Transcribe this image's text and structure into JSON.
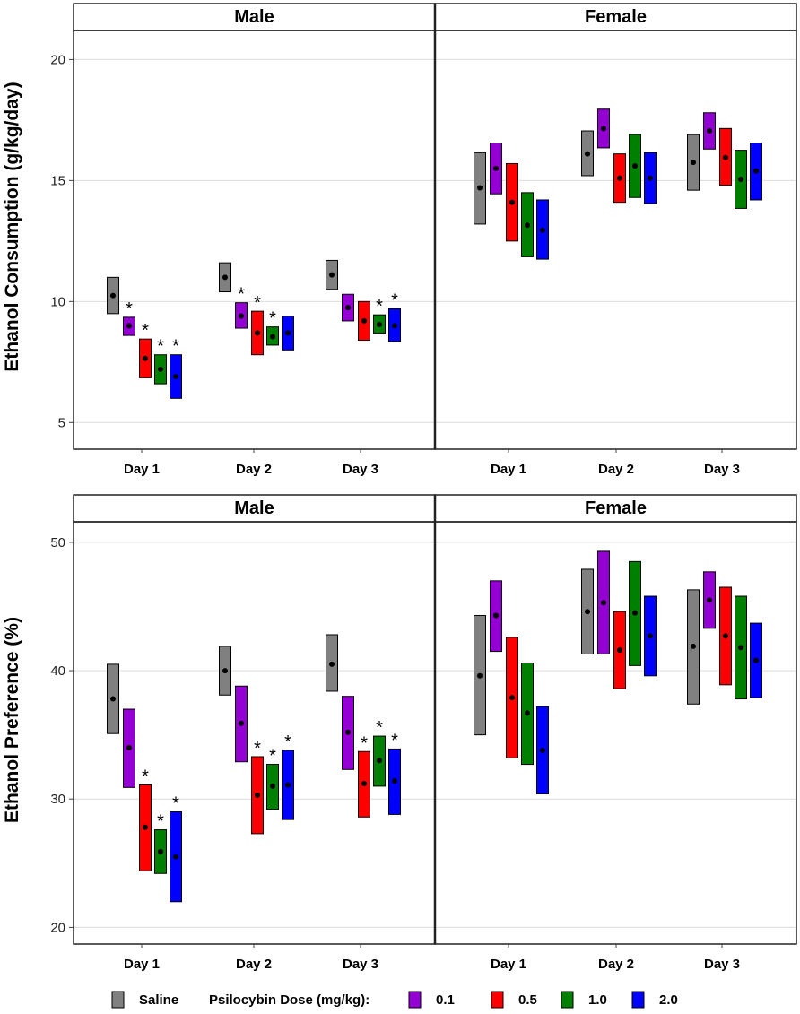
{
  "chart_data": [
    {
      "type": "crossbar",
      "ylabel": "Ethanol Consumption (g/kg/day)",
      "ylim": [
        3.9,
        21.2
      ],
      "yticks": [
        5,
        10,
        15,
        20
      ],
      "grid": true,
      "days": [
        "Day 1",
        "Day 2",
        "Day 3"
      ],
      "panels": [
        {
          "name": "Male",
          "series": [
            {
              "key": "saline",
              "mean": [
                10.25,
                11.0,
                11.1
              ],
              "low": [
                9.5,
                10.4,
                10.5
              ],
              "high": [
                11.0,
                11.6,
                11.7
              ],
              "sig": [
                false,
                false,
                false
              ]
            },
            {
              "key": "d01",
              "mean": [
                9.0,
                9.4,
                9.75
              ],
              "low": [
                8.6,
                8.9,
                9.2
              ],
              "high": [
                9.35,
                9.95,
                10.3
              ],
              "sig": [
                true,
                true,
                false
              ]
            },
            {
              "key": "d05",
              "mean": [
                7.65,
                8.7,
                9.2
              ],
              "low": [
                6.85,
                7.8,
                8.4
              ],
              "high": [
                8.45,
                9.6,
                10.0
              ],
              "sig": [
                true,
                true,
                false
              ]
            },
            {
              "key": "d10",
              "mean": [
                7.2,
                8.55,
                9.05
              ],
              "low": [
                6.6,
                8.2,
                8.7
              ],
              "high": [
                7.8,
                8.95,
                9.45
              ],
              "sig": [
                true,
                true,
                true
              ]
            },
            {
              "key": "d20",
              "mean": [
                6.9,
                8.7,
                9.0
              ],
              "low": [
                6.0,
                8.0,
                8.35
              ],
              "high": [
                7.8,
                9.4,
                9.7
              ],
              "sig": [
                true,
                false,
                true
              ]
            }
          ]
        },
        {
          "name": "Female",
          "series": [
            {
              "key": "saline",
              "mean": [
                14.7,
                16.1,
                15.75
              ],
              "low": [
                13.2,
                15.2,
                14.6
              ],
              "high": [
                16.15,
                17.05,
                16.9
              ],
              "sig": [
                false,
                false,
                false
              ]
            },
            {
              "key": "d01",
              "mean": [
                15.5,
                17.15,
                17.05
              ],
              "low": [
                14.45,
                16.35,
                16.3
              ],
              "high": [
                16.55,
                17.95,
                17.8
              ],
              "sig": [
                false,
                false,
                false
              ]
            },
            {
              "key": "d05",
              "mean": [
                14.1,
                15.1,
                15.95
              ],
              "low": [
                12.5,
                14.1,
                14.8
              ],
              "high": [
                15.7,
                16.1,
                17.15
              ],
              "sig": [
                false,
                false,
                false
              ]
            },
            {
              "key": "d10",
              "mean": [
                13.15,
                15.6,
                15.05
              ],
              "low": [
                11.85,
                14.3,
                13.85
              ],
              "high": [
                14.5,
                16.9,
                16.25
              ],
              "sig": [
                false,
                false,
                false
              ]
            },
            {
              "key": "d20",
              "mean": [
                12.95,
                15.1,
                15.4
              ],
              "low": [
                11.75,
                14.05,
                14.2
              ],
              "high": [
                14.2,
                16.15,
                16.55
              ],
              "sig": [
                false,
                false,
                false
              ]
            }
          ]
        }
      ]
    },
    {
      "type": "crossbar",
      "ylabel": "Ethanol Preference (%)",
      "ylim": [
        18.7,
        51.6
      ],
      "yticks": [
        20,
        30,
        40,
        50
      ],
      "grid": true,
      "days": [
        "Day 1",
        "Day 2",
        "Day 3"
      ],
      "panels": [
        {
          "name": "Male",
          "series": [
            {
              "key": "saline",
              "mean": [
                37.8,
                40.0,
                40.5
              ],
              "low": [
                35.1,
                38.1,
                38.4
              ],
              "high": [
                40.5,
                41.9,
                42.8
              ],
              "sig": [
                false,
                false,
                false
              ]
            },
            {
              "key": "d01",
              "mean": [
                34.0,
                35.9,
                35.2
              ],
              "low": [
                30.9,
                32.9,
                32.3
              ],
              "high": [
                37.0,
                38.8,
                38.0
              ],
              "sig": [
                false,
                false,
                false
              ]
            },
            {
              "key": "d05",
              "mean": [
                27.8,
                30.3,
                31.2
              ],
              "low": [
                24.4,
                27.3,
                28.6
              ],
              "high": [
                31.1,
                33.3,
                33.7
              ],
              "sig": [
                true,
                true,
                true
              ]
            },
            {
              "key": "d10",
              "mean": [
                25.9,
                31.0,
                33.0
              ],
              "low": [
                24.2,
                29.2,
                31.0
              ],
              "high": [
                27.6,
                32.7,
                34.9
              ],
              "sig": [
                true,
                true,
                true
              ]
            },
            {
              "key": "d20",
              "mean": [
                25.5,
                31.1,
                31.4
              ],
              "low": [
                22.0,
                28.4,
                28.8
              ],
              "high": [
                29.0,
                33.8,
                33.9
              ],
              "sig": [
                true,
                true,
                true
              ]
            }
          ]
        },
        {
          "name": "Female",
          "series": [
            {
              "key": "saline",
              "mean": [
                39.6,
                44.6,
                41.9
              ],
              "low": [
                35.0,
                41.3,
                37.4
              ],
              "high": [
                44.3,
                47.9,
                46.3
              ],
              "sig": [
                false,
                false,
                false
              ]
            },
            {
              "key": "d01",
              "mean": [
                44.3,
                45.3,
                45.5
              ],
              "low": [
                41.5,
                41.3,
                43.3
              ],
              "high": [
                47.0,
                49.3,
                47.7
              ],
              "sig": [
                false,
                false,
                false
              ]
            },
            {
              "key": "d05",
              "mean": [
                37.9,
                41.6,
                42.7
              ],
              "low": [
                33.2,
                38.6,
                38.9
              ],
              "high": [
                42.6,
                44.6,
                46.5
              ],
              "sig": [
                false,
                false,
                false
              ]
            },
            {
              "key": "d10",
              "mean": [
                36.7,
                44.5,
                41.8
              ],
              "low": [
                32.7,
                40.4,
                37.8
              ],
              "high": [
                40.6,
                48.5,
                45.8
              ],
              "sig": [
                false,
                false,
                false
              ]
            },
            {
              "key": "d20",
              "mean": [
                33.8,
                42.7,
                40.8
              ],
              "low": [
                30.4,
                39.6,
                37.9
              ],
              "high": [
                37.2,
                45.8,
                43.7
              ],
              "sig": [
                false,
                false,
                false
              ]
            }
          ]
        }
      ]
    }
  ],
  "legend": {
    "items": [
      {
        "key": "saline",
        "label": "Saline",
        "color": "#808080"
      },
      {
        "key": "d01",
        "label": "0.1",
        "color": "#9400d3"
      },
      {
        "key": "d05",
        "label": "0.5",
        "color": "#ff0000"
      },
      {
        "key": "d10",
        "label": "1.0",
        "color": "#008000"
      },
      {
        "key": "d20",
        "label": "2.0",
        "color": "#0000ff"
      }
    ],
    "dose_title": "Psilocybin Dose (mg/kg):"
  },
  "significance_marker": "*"
}
